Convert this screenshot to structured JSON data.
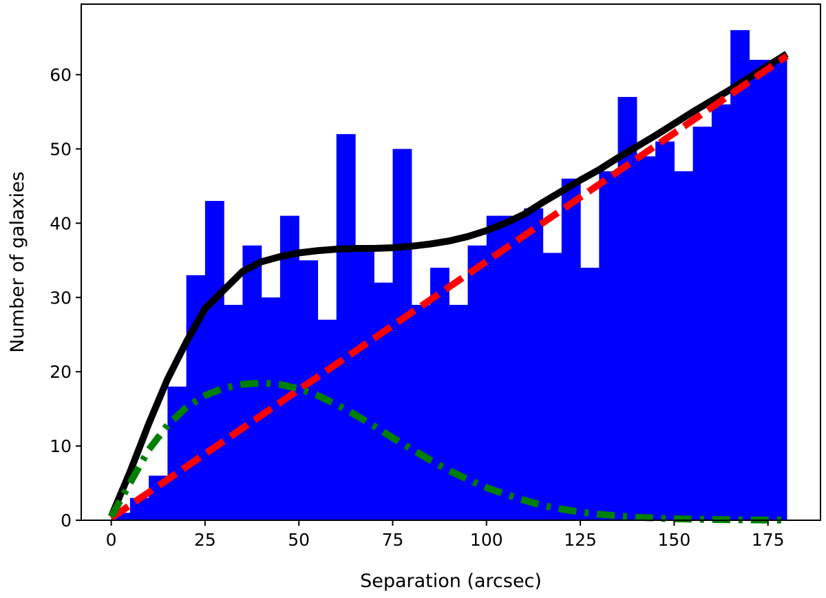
{
  "chart_data": {
    "type": "histogram",
    "title": "",
    "xlabel": "Separation (arcsec)",
    "ylabel": "Number of galaxies",
    "xlim": [
      -8,
      189
    ],
    "ylim": [
      0,
      69.5
    ],
    "xticks": [
      0,
      25,
      50,
      75,
      100,
      125,
      150,
      175
    ],
    "yticks": [
      0,
      10,
      20,
      30,
      40,
      50,
      60
    ],
    "grid": false,
    "legend": "none",
    "histogram": {
      "color": "#0000ff",
      "bin_width": 5,
      "bin_starts": [
        0,
        5,
        10,
        15,
        20,
        25,
        30,
        35,
        40,
        45,
        50,
        55,
        60,
        65,
        70,
        75,
        80,
        85,
        90,
        95,
        100,
        105,
        110,
        115,
        120,
        125,
        130,
        135,
        140,
        145,
        150,
        155,
        160,
        165,
        170,
        175
      ],
      "counts": [
        1,
        3,
        6,
        18,
        33,
        43,
        29,
        37,
        30,
        41,
        35,
        27,
        52,
        37,
        32,
        50,
        29,
        34,
        29,
        37,
        41,
        41,
        42,
        36,
        46,
        34,
        47,
        57,
        49,
        51,
        47,
        53,
        56,
        66,
        62,
        62
      ]
    },
    "series": [
      {
        "style": "solid",
        "color": "#000000",
        "x": [
          0,
          5,
          10,
          15,
          20,
          25,
          30,
          35,
          40,
          45,
          50,
          55,
          60,
          65,
          70,
          75,
          80,
          85,
          90,
          95,
          100,
          105,
          110,
          115,
          120,
          125,
          130,
          135,
          140,
          145,
          150,
          155,
          160,
          165,
          170,
          175,
          180
        ],
        "y": [
          0.5,
          6.5,
          13,
          19,
          24,
          28.5,
          31,
          33.5,
          34.8,
          35.5,
          36,
          36.3,
          36.5,
          36.6,
          36.6,
          36.7,
          36.9,
          37.2,
          37.6,
          38.2,
          39,
          40,
          41.2,
          42.8,
          44.3,
          45.8,
          47.2,
          48.8,
          50.3,
          51.8,
          53.4,
          55,
          56.5,
          58,
          59.6,
          61.2,
          62.8
        ]
      },
      {
        "style": "dashed",
        "color": "#ff0000",
        "x": [
          0,
          180
        ],
        "y": [
          0.3,
          62.5
        ]
      },
      {
        "style": "dashdot",
        "color": "#008000",
        "x": [
          0,
          5,
          10,
          15,
          20,
          25,
          30,
          35,
          40,
          45,
          50,
          55,
          60,
          65,
          70,
          75,
          80,
          85,
          90,
          95,
          100,
          105,
          110,
          115,
          120,
          125,
          130,
          135,
          140,
          145,
          150,
          155,
          160,
          165,
          170,
          175,
          180
        ],
        "y": [
          0.5,
          5,
          9.5,
          12.8,
          15.2,
          16.8,
          17.8,
          18.3,
          18.5,
          18.3,
          17.7,
          16.8,
          15.6,
          14.2,
          12.7,
          11.1,
          9.6,
          8.1,
          6.7,
          5.5,
          4.4,
          3.5,
          2.7,
          2,
          1.5,
          1.1,
          0.8,
          0.6,
          0.4,
          0.3,
          0.2,
          0.15,
          0.1,
          0.07,
          0.05,
          0.03,
          0.02
        ]
      }
    ]
  }
}
